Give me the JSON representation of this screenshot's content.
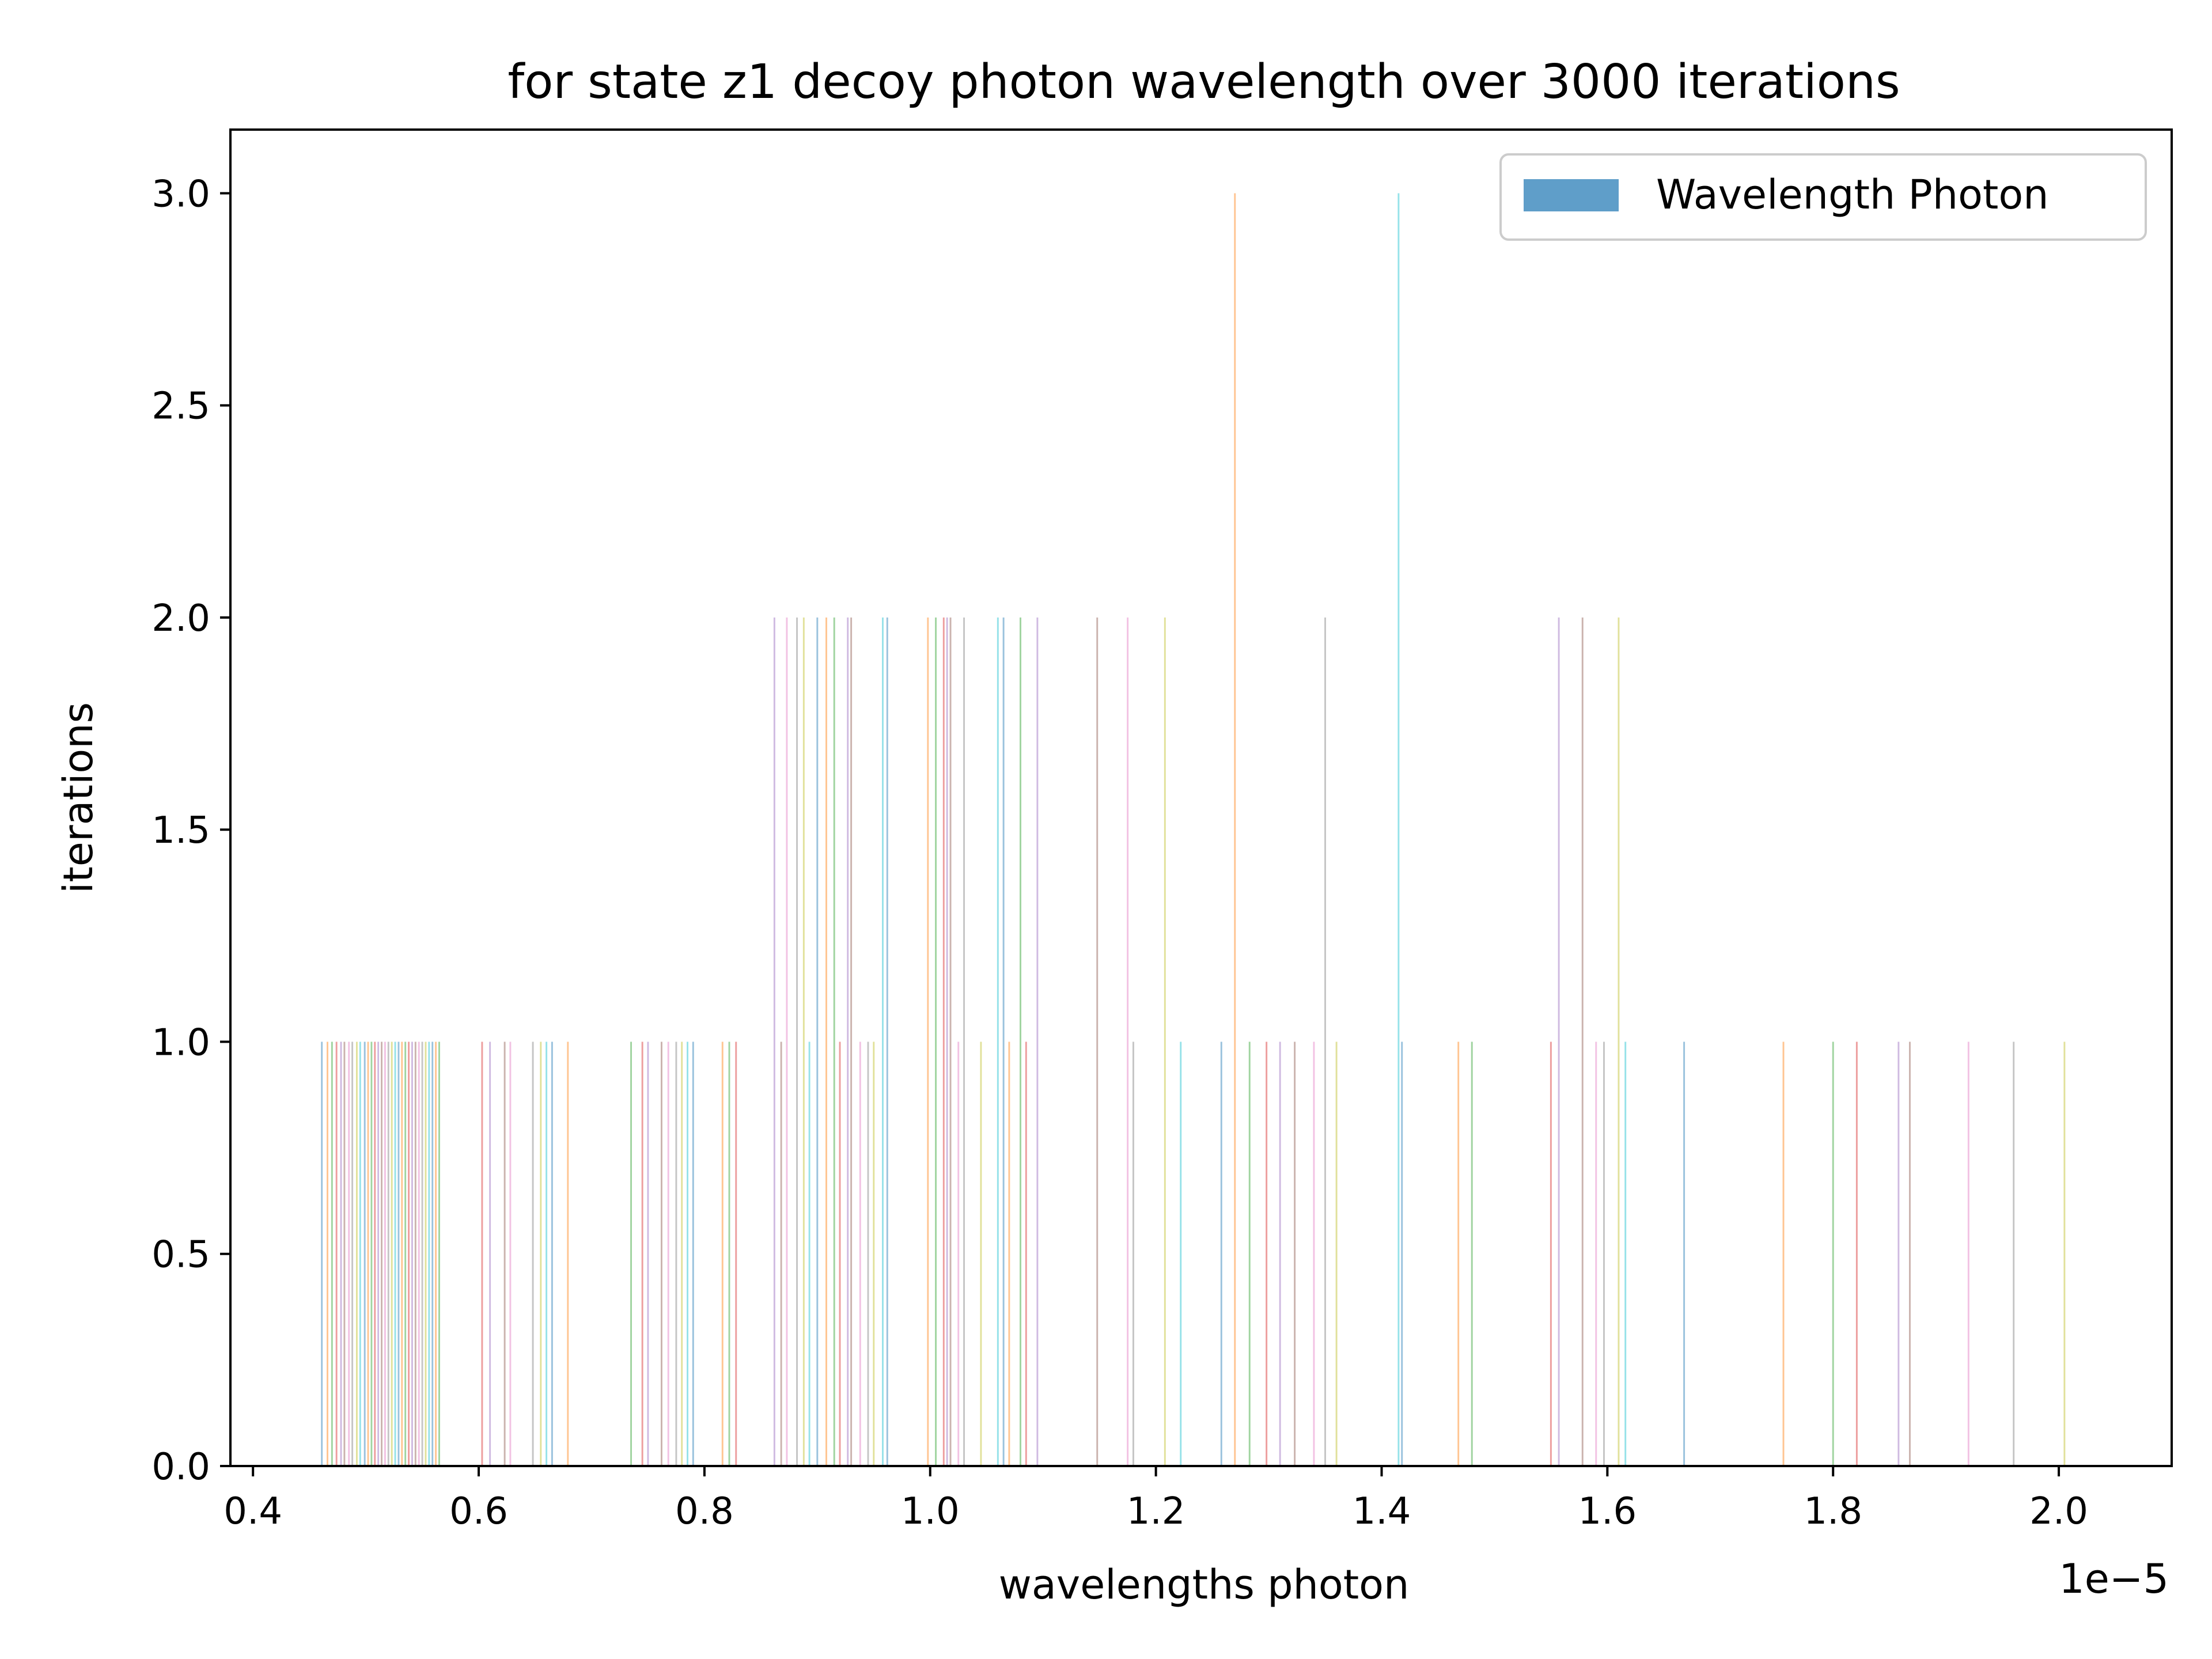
{
  "chart_data": {
    "type": "bar",
    "title": "for state z1 decoy photon wavelength over 3000 iterations",
    "xlabel": "wavelengths photon",
    "ylabel": "iterations",
    "x_offset_text": "1e−5",
    "xlim": [
      0.38,
      2.1
    ],
    "ylim": [
      0,
      3.15
    ],
    "x_ticks": [
      "0.4",
      "0.6",
      "0.8",
      "1.0",
      "1.2",
      "1.4",
      "1.6",
      "1.8",
      "2.0"
    ],
    "y_ticks": [
      "0.0",
      "0.5",
      "1.0",
      "1.5",
      "2.0",
      "2.5",
      "3.0"
    ],
    "legend": {
      "label": "Wavelength Photon",
      "color": "#5f9ec9",
      "placement": "upper right"
    },
    "grid": false,
    "palette": [
      "#1f77b4",
      "#ff7f0e",
      "#2ca02c",
      "#d62728",
      "#9467bd",
      "#8c564b",
      "#e377c2",
      "#7f7f7f",
      "#bcbd22",
      "#17becf"
    ],
    "bar_width": 0.0015,
    "points": [
      {
        "x": 0.461,
        "count": 1
      },
      {
        "x": 0.466,
        "count": 1
      },
      {
        "x": 0.47,
        "count": 1
      },
      {
        "x": 0.474,
        "count": 1
      },
      {
        "x": 0.478,
        "count": 1
      },
      {
        "x": 0.481,
        "count": 1
      },
      {
        "x": 0.485,
        "count": 1
      },
      {
        "x": 0.488,
        "count": 1
      },
      {
        "x": 0.492,
        "count": 1
      },
      {
        "x": 0.495,
        "count": 1
      },
      {
        "x": 0.499,
        "count": 1
      },
      {
        "x": 0.502,
        "count": 1
      },
      {
        "x": 0.505,
        "count": 1
      },
      {
        "x": 0.508,
        "count": 1
      },
      {
        "x": 0.511,
        "count": 1
      },
      {
        "x": 0.514,
        "count": 1
      },
      {
        "x": 0.517,
        "count": 1
      },
      {
        "x": 0.52,
        "count": 1
      },
      {
        "x": 0.523,
        "count": 1
      },
      {
        "x": 0.526,
        "count": 1
      },
      {
        "x": 0.529,
        "count": 1
      },
      {
        "x": 0.532,
        "count": 1
      },
      {
        "x": 0.535,
        "count": 1
      },
      {
        "x": 0.538,
        "count": 1
      },
      {
        "x": 0.541,
        "count": 1
      },
      {
        "x": 0.544,
        "count": 1
      },
      {
        "x": 0.547,
        "count": 1
      },
      {
        "x": 0.55,
        "count": 1
      },
      {
        "x": 0.553,
        "count": 1
      },
      {
        "x": 0.556,
        "count": 1
      },
      {
        "x": 0.559,
        "count": 1
      },
      {
        "x": 0.562,
        "count": 1
      },
      {
        "x": 0.565,
        "count": 1
      },
      {
        "x": 0.603,
        "count": 1
      },
      {
        "x": 0.61,
        "count": 1
      },
      {
        "x": 0.623,
        "count": 1
      },
      {
        "x": 0.628,
        "count": 1
      },
      {
        "x": 0.648,
        "count": 1
      },
      {
        "x": 0.655,
        "count": 1
      },
      {
        "x": 0.66,
        "count": 1
      },
      {
        "x": 0.665,
        "count": 1
      },
      {
        "x": 0.679,
        "count": 1
      },
      {
        "x": 0.735,
        "count": 1
      },
      {
        "x": 0.745,
        "count": 1
      },
      {
        "x": 0.75,
        "count": 1
      },
      {
        "x": 0.762,
        "count": 1
      },
      {
        "x": 0.768,
        "count": 1
      },
      {
        "x": 0.775,
        "count": 1
      },
      {
        "x": 0.78,
        "count": 1
      },
      {
        "x": 0.785,
        "count": 1
      },
      {
        "x": 0.79,
        "count": 1
      },
      {
        "x": 0.816,
        "count": 1
      },
      {
        "x": 0.822,
        "count": 1
      },
      {
        "x": 0.828,
        "count": 1
      },
      {
        "x": 0.862,
        "count": 2
      },
      {
        "x": 0.868,
        "count": 1
      },
      {
        "x": 0.873,
        "count": 2
      },
      {
        "x": 0.882,
        "count": 2
      },
      {
        "x": 0.888,
        "count": 2
      },
      {
        "x": 0.893,
        "count": 1
      },
      {
        "x": 0.9,
        "count": 2
      },
      {
        "x": 0.908,
        "count": 2
      },
      {
        "x": 0.915,
        "count": 2
      },
      {
        "x": 0.92,
        "count": 1
      },
      {
        "x": 0.927,
        "count": 2
      },
      {
        "x": 0.93,
        "count": 2
      },
      {
        "x": 0.938,
        "count": 1
      },
      {
        "x": 0.945,
        "count": 1
      },
      {
        "x": 0.95,
        "count": 1
      },
      {
        "x": 0.958,
        "count": 2
      },
      {
        "x": 0.962,
        "count": 2
      },
      {
        "x": 0.998,
        "count": 2
      },
      {
        "x": 1.005,
        "count": 2
      },
      {
        "x": 1.012,
        "count": 2
      },
      {
        "x": 1.015,
        "count": 2
      },
      {
        "x": 1.018,
        "count": 2
      },
      {
        "x": 1.025,
        "count": 1
      },
      {
        "x": 1.03,
        "count": 2
      },
      {
        "x": 1.045,
        "count": 1
      },
      {
        "x": 1.06,
        "count": 2
      },
      {
        "x": 1.065,
        "count": 2
      },
      {
        "x": 1.07,
        "count": 1
      },
      {
        "x": 1.08,
        "count": 2
      },
      {
        "x": 1.085,
        "count": 1
      },
      {
        "x": 1.095,
        "count": 2
      },
      {
        "x": 1.148,
        "count": 2
      },
      {
        "x": 1.175,
        "count": 2
      },
      {
        "x": 1.18,
        "count": 1
      },
      {
        "x": 1.208,
        "count": 2
      },
      {
        "x": 1.222,
        "count": 1
      },
      {
        "x": 1.258,
        "count": 1
      },
      {
        "x": 1.27,
        "count": 3
      },
      {
        "x": 1.283,
        "count": 1
      },
      {
        "x": 1.298,
        "count": 1
      },
      {
        "x": 1.31,
        "count": 1
      },
      {
        "x": 1.323,
        "count": 1
      },
      {
        "x": 1.34,
        "count": 1
      },
      {
        "x": 1.35,
        "count": 2
      },
      {
        "x": 1.36,
        "count": 1
      },
      {
        "x": 1.415,
        "count": 3
      },
      {
        "x": 1.418,
        "count": 1
      },
      {
        "x": 1.468,
        "count": 1
      },
      {
        "x": 1.48,
        "count": 1
      },
      {
        "x": 1.55,
        "count": 1
      },
      {
        "x": 1.557,
        "count": 2
      },
      {
        "x": 1.578,
        "count": 2
      },
      {
        "x": 1.59,
        "count": 1
      },
      {
        "x": 1.597,
        "count": 1
      },
      {
        "x": 1.61,
        "count": 2
      },
      {
        "x": 1.616,
        "count": 1
      },
      {
        "x": 1.668,
        "count": 1
      },
      {
        "x": 1.756,
        "count": 1
      },
      {
        "x": 1.8,
        "count": 1
      },
      {
        "x": 1.821,
        "count": 1
      },
      {
        "x": 1.858,
        "count": 1
      },
      {
        "x": 1.868,
        "count": 1
      },
      {
        "x": 1.92,
        "count": 1
      },
      {
        "x": 1.96,
        "count": 1
      },
      {
        "x": 2.005,
        "count": 1
      }
    ]
  }
}
